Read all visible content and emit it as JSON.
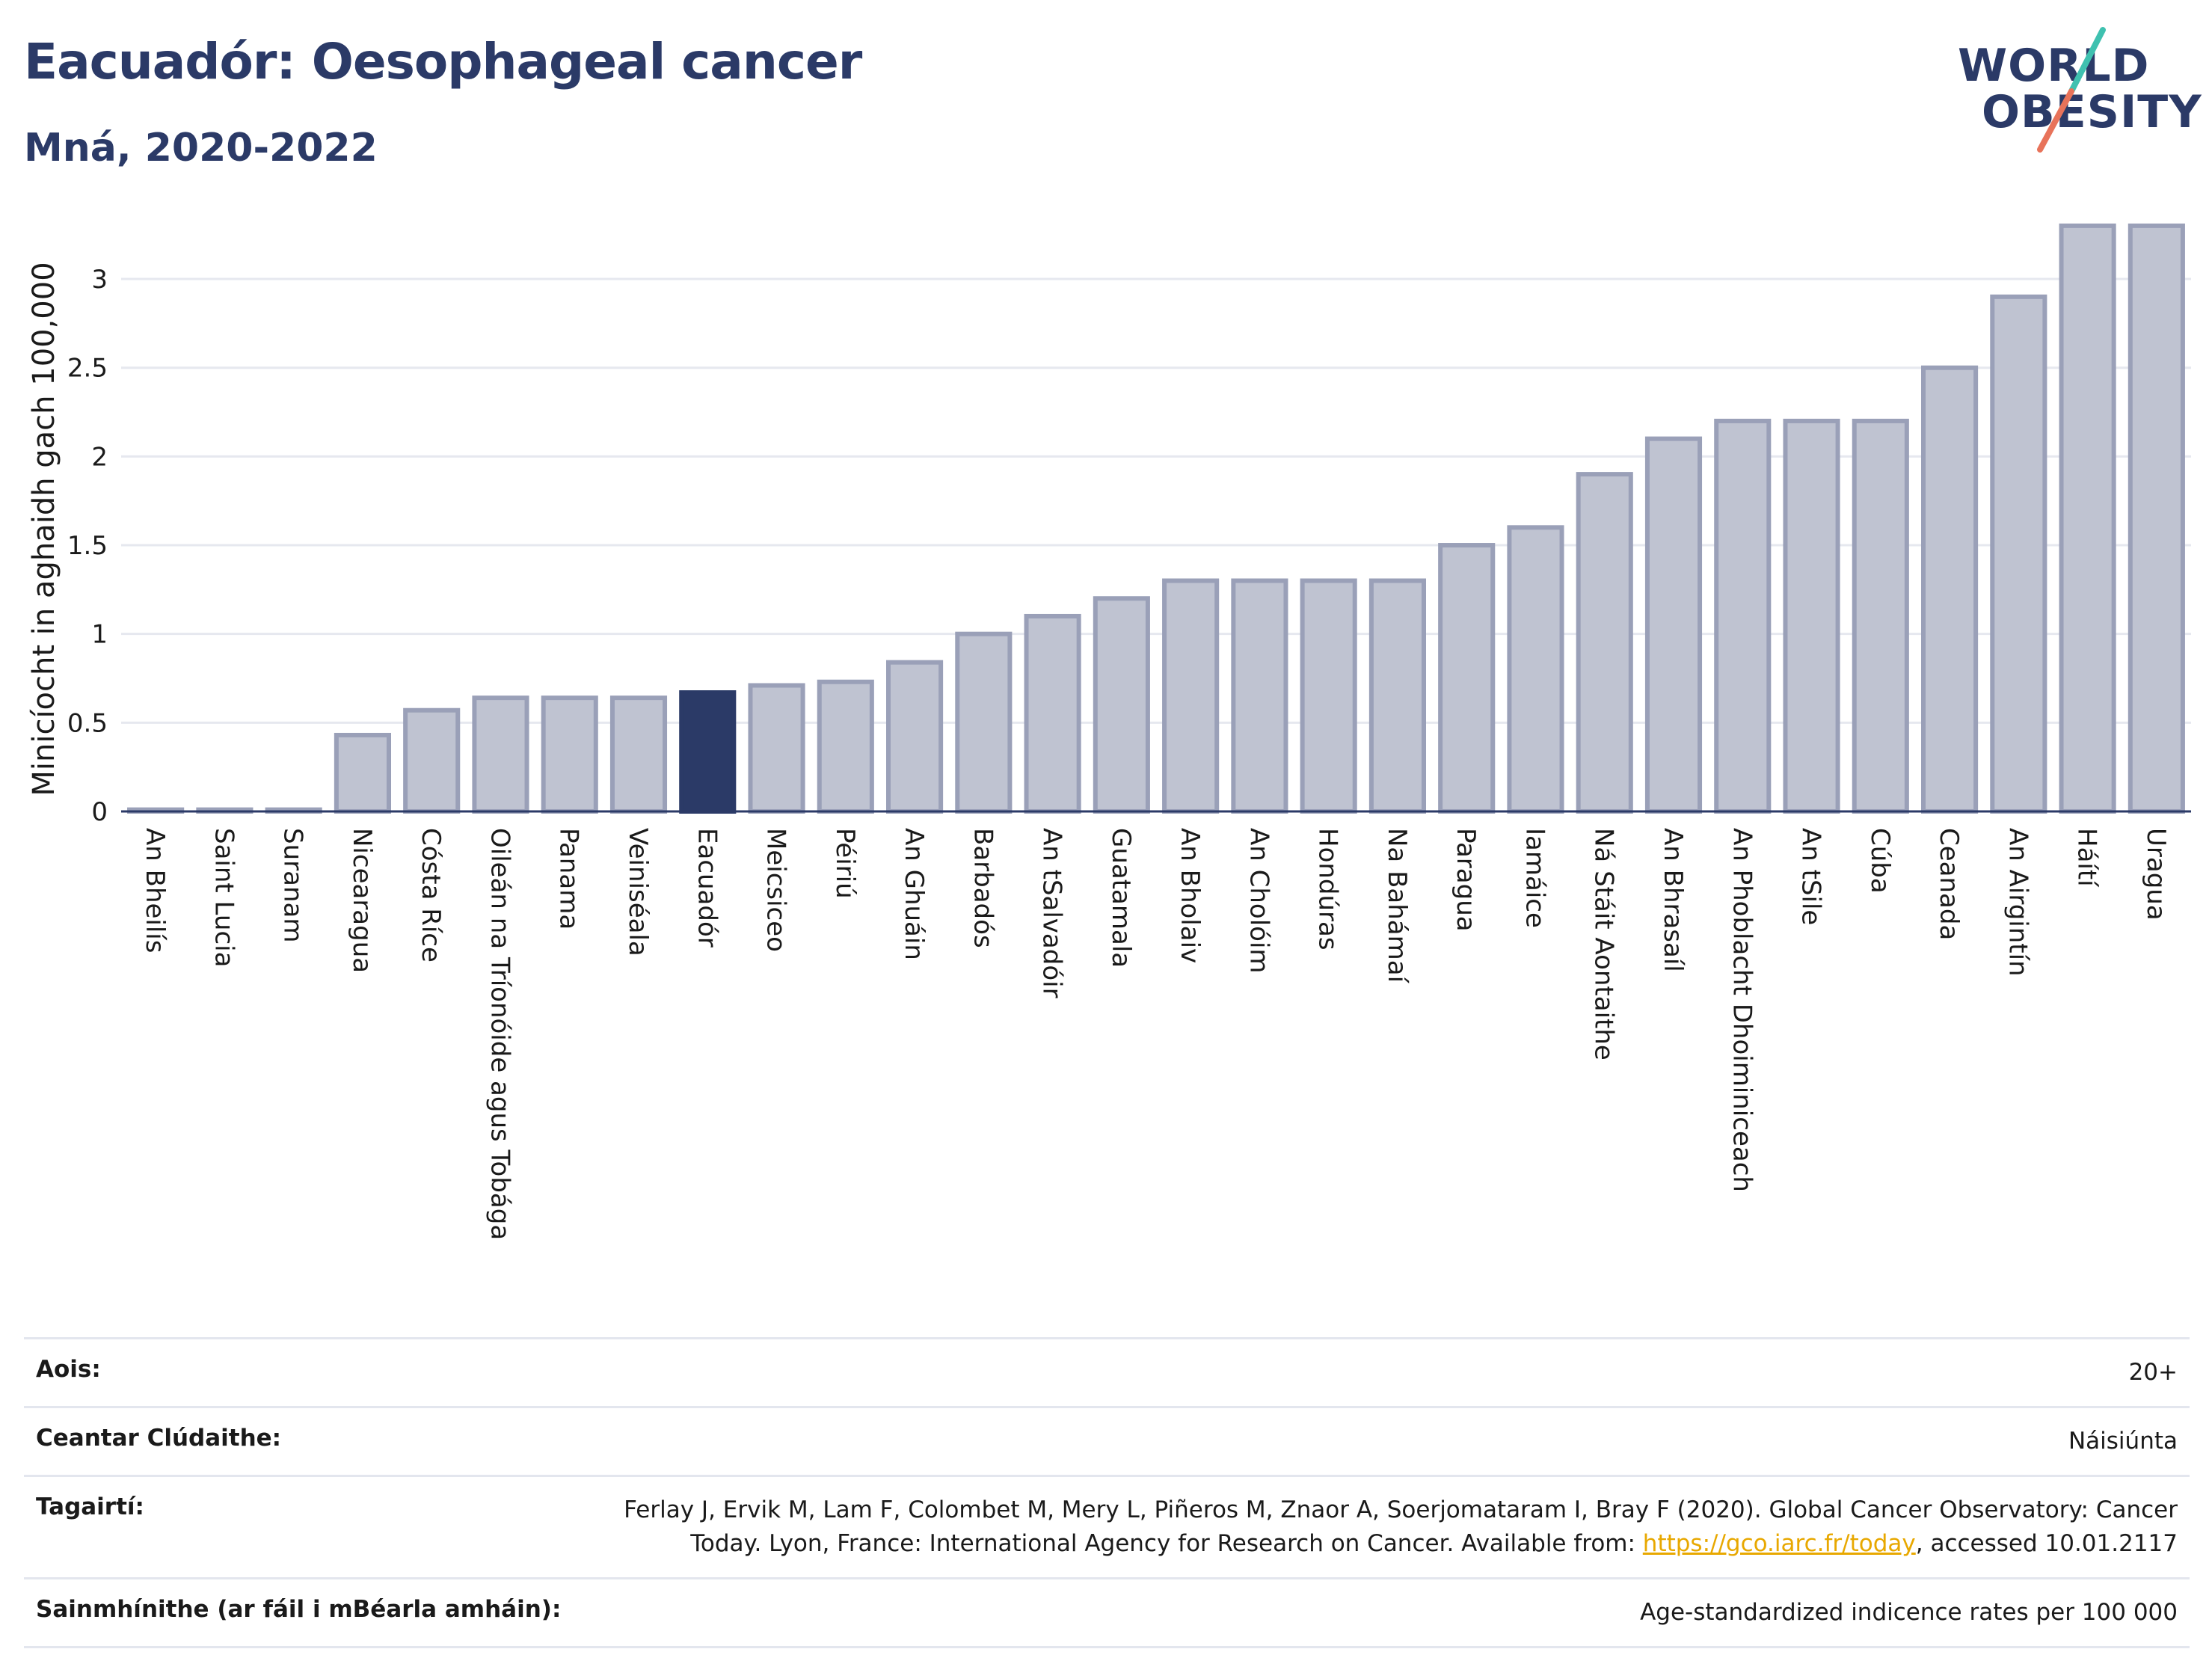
{
  "header": {
    "title": "Eacuadór: Oesophageal cancer",
    "subtitle": "Mná, 2020-2022"
  },
  "logo": {
    "line1": "WORLD",
    "line2": "OBESITY",
    "slash_colors": [
      "#3fc1b0",
      "#e8735a"
    ]
  },
  "colors": {
    "bar": "#bfc3d1",
    "bar_border": "#9aa0b8",
    "highlight": "#2b3a67",
    "grid": "#e6e8ef",
    "axis": "#2b3a67"
  },
  "chart_data": {
    "type": "bar",
    "ylabel": "Minicíocht in aghaidh gach 100,000",
    "ylim": [
      0,
      3.35
    ],
    "yticks": [
      0,
      0.5,
      1,
      1.5,
      2,
      2.5,
      3
    ],
    "ytick_labels": [
      "0",
      "0.5",
      "1",
      "1.5",
      "2",
      "2.5",
      "3"
    ],
    "grid": true,
    "highlight": "Eacuadór",
    "categories": [
      "An Bheilís",
      "Saint Lucia",
      "Suranam",
      "Nicearagua",
      "Cósta Ríce",
      "Oileán na Tríonóide agus Tobága",
      "Panama",
      "Veiniséala",
      "Eacuadór",
      "Meicsiceo",
      "Péiriú",
      "An Ghuáin",
      "Barbadós",
      "An tSalvadóir",
      "Guatamala",
      "An Bholaiv",
      "An Cholóim",
      "Hondúras",
      "Na Bahámaí",
      "Paragua",
      "Iamáice",
      "Ná Stáit Aontaithe",
      "An Bhrasaíl",
      "An Phoblacht Dhoiminiceach",
      "An tSile",
      "Cúba",
      "Ceanada",
      "An Airgintín",
      "Háítí",
      "Uragua"
    ],
    "values": [
      0.01,
      0.01,
      0.01,
      0.43,
      0.57,
      0.64,
      0.64,
      0.64,
      0.67,
      0.71,
      0.73,
      0.84,
      1.0,
      1.1,
      1.2,
      1.3,
      1.3,
      1.3,
      1.3,
      1.5,
      1.6,
      1.9,
      2.1,
      2.2,
      2.2,
      2.2,
      2.5,
      2.9,
      3.3,
      3.3
    ]
  },
  "meta": {
    "age_label": "Aois:",
    "age_value": "20+",
    "coverage_label": "Ceantar Clúdaithe:",
    "coverage_value": "Náisiúnta",
    "ref_label": "Tagairtí:",
    "ref_text_1": "Ferlay J, Ervik M, Lam F, Colombet M, Mery L, Piñeros M, Znaor A, Soerjomataram I, Bray F (2020). Global Cancer Observatory: Cancer",
    "ref_text_2": "Today. Lyon, France: International Agency for Research on Cancer. Available from: ",
    "ref_link": "https://gco.iarc.fr/today",
    "ref_text_3": ", accessed 10.01.2117",
    "def_label": "Sainmhínithe (ar fáil i mBéarla amháin):",
    "def_value": "Age-standardized indicence rates per 100 000"
  }
}
